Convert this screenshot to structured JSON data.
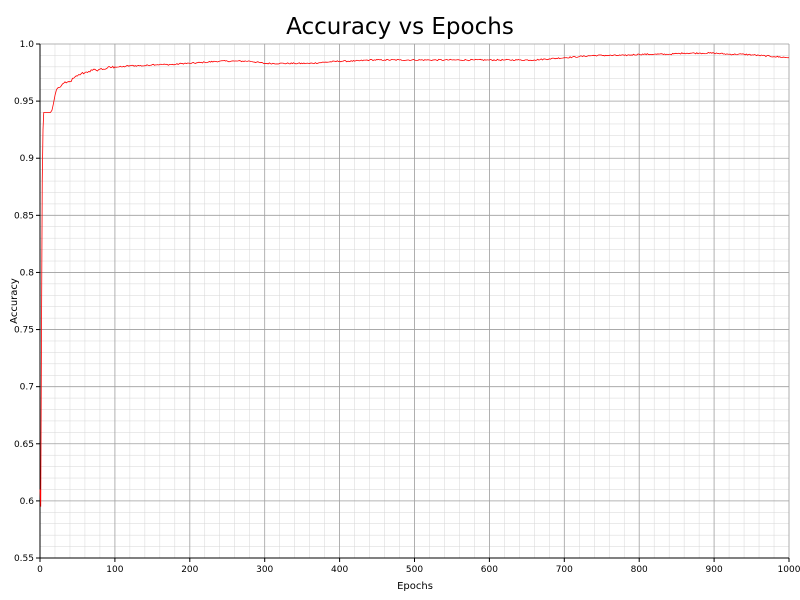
{
  "chart_data": {
    "type": "line",
    "title": "Accuracy vs Epochs",
    "xlabel": "Epochs",
    "ylabel": "Accuracy",
    "xlim": [
      0,
      1000
    ],
    "ylim": [
      0.55,
      1.0
    ],
    "x_ticks": [
      0,
      100,
      200,
      300,
      400,
      500,
      600,
      700,
      800,
      900,
      1000
    ],
    "y_ticks": [
      0.55,
      0.6,
      0.65,
      0.7,
      0.75,
      0.8,
      0.85,
      0.9,
      0.95,
      1.0
    ],
    "x_tick_labels": [
      "0",
      "100",
      "200",
      "300",
      "400",
      "500",
      "600",
      "700",
      "800",
      "900",
      "1000"
    ],
    "y_tick_labels": [
      "0.55",
      "0.6",
      "0.65",
      "0.7",
      "0.75",
      "0.8",
      "0.85",
      "0.9",
      "0.95",
      "1.0"
    ],
    "grid": true,
    "minor_grid": true,
    "legend": "none",
    "line_color": "#ff0000",
    "series": [
      {
        "x": [
          0,
          1,
          2,
          3,
          4,
          5,
          6,
          8,
          10,
          12,
          14,
          16,
          18,
          20,
          22,
          25,
          28,
          30,
          35,
          40,
          45,
          50,
          55,
          60,
          65,
          70,
          75,
          80,
          85,
          90,
          100,
          110,
          120,
          130,
          140,
          150,
          160,
          170,
          180,
          190,
          200,
          220,
          240,
          260,
          280,
          300,
          320,
          340,
          360,
          380,
          400,
          420,
          440,
          460,
          480,
          500,
          520,
          540,
          560,
          580,
          600,
          620,
          640,
          660,
          680,
          700,
          720,
          740,
          760,
          780,
          800,
          820,
          840,
          860,
          880,
          900,
          920,
          940,
          960,
          980,
          1000
        ],
        "y": [
          0.61,
          0.595,
          0.75,
          0.88,
          0.925,
          0.94,
          0.94,
          0.94,
          0.94,
          0.94,
          0.94,
          0.942,
          0.948,
          0.955,
          0.96,
          0.962,
          0.963,
          0.965,
          0.966,
          0.967,
          0.97,
          0.972,
          0.974,
          0.975,
          0.976,
          0.977,
          0.977,
          0.978,
          0.978,
          0.979,
          0.98,
          0.98,
          0.981,
          0.981,
          0.981,
          0.982,
          0.982,
          0.982,
          0.982,
          0.983,
          0.983,
          0.984,
          0.985,
          0.985,
          0.985,
          0.983,
          0.983,
          0.983,
          0.983,
          0.984,
          0.985,
          0.985,
          0.986,
          0.986,
          0.986,
          0.986,
          0.986,
          0.986,
          0.986,
          0.986,
          0.986,
          0.986,
          0.986,
          0.986,
          0.987,
          0.988,
          0.989,
          0.99,
          0.99,
          0.99,
          0.991,
          0.991,
          0.991,
          0.992,
          0.992,
          0.992,
          0.991,
          0.991,
          0.99,
          0.989,
          0.988
        ]
      }
    ]
  }
}
